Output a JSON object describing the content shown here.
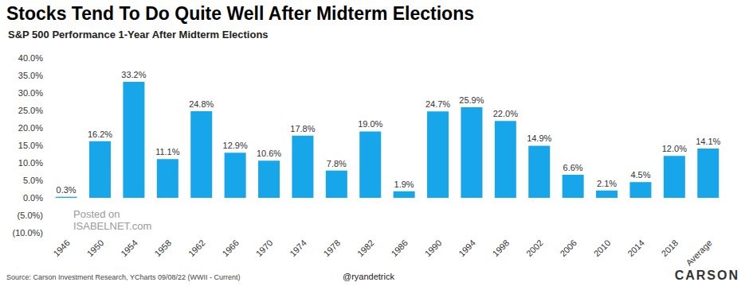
{
  "chart_data": {
    "type": "bar",
    "title": "Stocks Tend To Do Quite Well After Midterm Elections",
    "subtitle": "S&P 500 Performance 1-Year After Midterm Elections",
    "source": "Source: Carson Investment Research, YCharts 09/08/22 (WWII - Current)",
    "handle": "@ryandetrick",
    "logo": "CARSON",
    "watermark": [
      "Posted on",
      "ISABELNET.com"
    ],
    "categories": [
      "1946",
      "1950",
      "1954",
      "1958",
      "1962",
      "1966",
      "1970",
      "1974",
      "1978",
      "1982",
      "1986",
      "1990",
      "1994",
      "1998",
      "2002",
      "2006",
      "2010",
      "2014",
      "2018",
      "Average"
    ],
    "values": [
      0.3,
      16.2,
      33.2,
      11.1,
      24.8,
      12.9,
      10.6,
      17.8,
      7.8,
      19.0,
      1.9,
      24.7,
      25.9,
      22.0,
      14.9,
      6.6,
      2.1,
      4.5,
      12.0,
      14.1
    ],
    "value_labels": [
      "0.3%",
      "16.2%",
      "33.2%",
      "11.1%",
      "24.8%",
      "12.9%",
      "10.6%",
      "17.8%",
      "7.8%",
      "19.0%",
      "1.9%",
      "24.7%",
      "25.9%",
      "22.0%",
      "14.9%",
      "6.6%",
      "2.1%",
      "4.5%",
      "12.0%",
      "14.1%"
    ],
    "data_labels": true,
    "color": "#18a6ea",
    "ylim": [
      -10,
      40
    ],
    "yticks": [
      {
        "value": -10,
        "label": "(10.0%)"
      },
      {
        "value": -5,
        "label": "(5.0%)"
      },
      {
        "value": 0,
        "label": "0.0%"
      },
      {
        "value": 5,
        "label": "5.0%"
      },
      {
        "value": 10,
        "label": "10.0%"
      },
      {
        "value": 15,
        "label": "15.0%"
      },
      {
        "value": 20,
        "label": "20.0%"
      },
      {
        "value": 25,
        "label": "25.0%"
      },
      {
        "value": 30,
        "label": "30.0%"
      },
      {
        "value": 35,
        "label": "35.0%"
      },
      {
        "value": 40,
        "label": "40.0%"
      }
    ],
    "grid": false
  }
}
